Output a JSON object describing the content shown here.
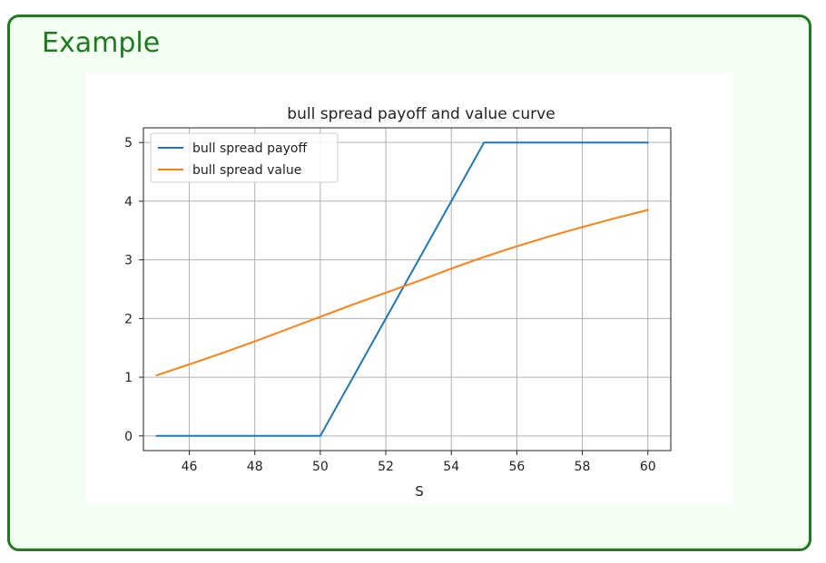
{
  "block": {
    "title": "Example"
  },
  "chart_data": {
    "type": "line",
    "title": "bull spread payoff and value curve",
    "xlabel": "S",
    "ylabel": "",
    "xlim": [
      44.6,
      60.7
    ],
    "ylim": [
      -0.25,
      5.25
    ],
    "xticks": [
      46,
      48,
      50,
      52,
      54,
      56,
      58,
      60
    ],
    "yticks": [
      0,
      1,
      2,
      3,
      4,
      5
    ],
    "grid": true,
    "legend": "upper-left",
    "series": [
      {
        "name": "bull spread payoff",
        "color": "#1f77b4",
        "x": [
          45,
          50,
          55,
          60
        ],
        "y": [
          0,
          0,
          5,
          5
        ]
      },
      {
        "name": "bull spread value",
        "color": "#ff7f0e",
        "x": [
          45,
          46,
          47,
          48,
          49,
          50,
          51,
          52,
          53,
          54,
          55,
          56,
          57,
          58,
          59,
          60
        ],
        "y": [
          1.03,
          1.22,
          1.41,
          1.61,
          1.82,
          2.03,
          2.24,
          2.44,
          2.64,
          2.85,
          3.05,
          3.23,
          3.4,
          3.56,
          3.71,
          3.85
        ]
      }
    ]
  }
}
